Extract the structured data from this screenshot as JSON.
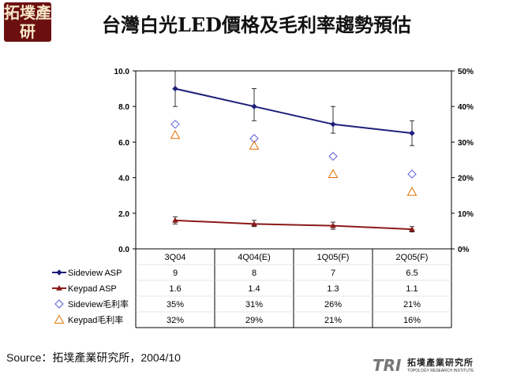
{
  "logo_top_left": "拓墣產研",
  "title": "台灣白光LED價格及毛利率趨勢預估",
  "source": "Source：拓墣產業研究所，2004/10",
  "logo_bottom_right": {
    "mark": "TRI",
    "cn": "拓墣產業研究所",
    "en": "TOPOLOGY RESEARCH INSTITUTE"
  },
  "colors": {
    "sideview": "#1f1f7a",
    "keypad": "#8b1a1a",
    "sideview_margin": "#5b5bd6",
    "keypad_margin": "#e07000"
  },
  "chart_data": {
    "type": "line",
    "categories": [
      "3Q04",
      "4Q04(E)",
      "1Q05(F)",
      "2Q05(F)"
    ],
    "y_left": {
      "ticks": [
        "10.0",
        "8.0",
        "6.0",
        "4.0",
        "2.0",
        "0.0"
      ],
      "range": [
        0,
        10
      ]
    },
    "y_right": {
      "ticks": [
        "50%",
        "40%",
        "30%",
        "20%",
        "10%",
        "0%"
      ],
      "range": [
        0,
        50
      ]
    },
    "series": [
      {
        "name": "Sideview ASP",
        "axis": "left",
        "values": [
          9,
          8,
          7,
          6.5
        ],
        "table": [
          "9",
          "8",
          "7",
          "6.5"
        ],
        "error": [
          [
            8,
            10
          ],
          [
            7.2,
            9
          ],
          [
            6.5,
            8
          ],
          [
            5.8,
            7.2
          ]
        ],
        "marker": "diamond-filled"
      },
      {
        "name": "Keypad ASP",
        "axis": "left",
        "values": [
          1.6,
          1.4,
          1.3,
          1.1
        ],
        "table": [
          "1.6",
          "1.4",
          "1.3",
          "1.1"
        ],
        "error": [
          [
            1.4,
            1.8
          ],
          [
            1.25,
            1.6
          ],
          [
            1.1,
            1.5
          ],
          [
            0.95,
            1.25
          ]
        ],
        "marker": "triangle-filled"
      },
      {
        "name": "Sideview毛利率",
        "axis": "right",
        "values": [
          35,
          31,
          26,
          21
        ],
        "table": [
          "35%",
          "31%",
          "26%",
          "21%"
        ],
        "marker": "diamond-open"
      },
      {
        "name": "Keypad毛利率",
        "axis": "right",
        "values": [
          32,
          29,
          21,
          16
        ],
        "table": [
          "32%",
          "29%",
          "21%",
          "16%"
        ],
        "marker": "triangle-open"
      }
    ]
  }
}
